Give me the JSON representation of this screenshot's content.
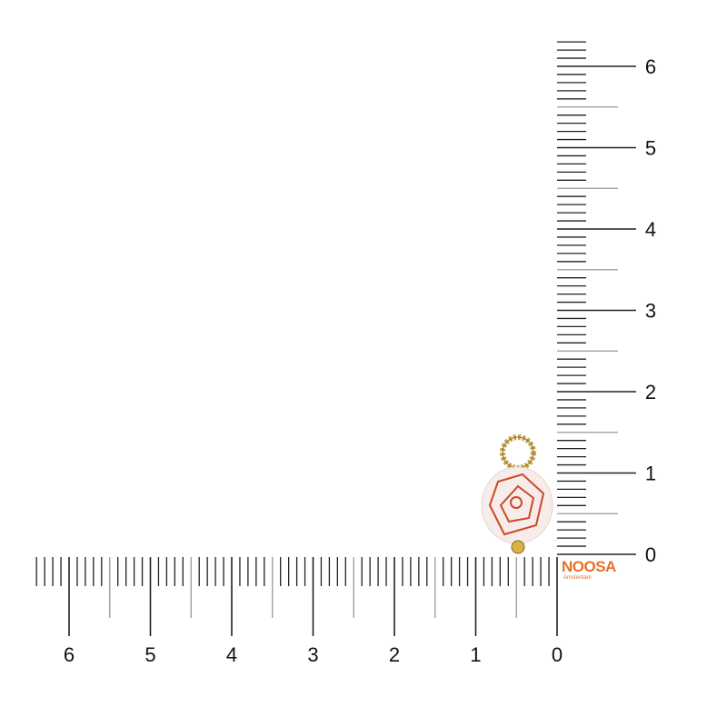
{
  "vertical_ruler": {
    "labels": [
      "0",
      "1",
      "2",
      "3",
      "4",
      "5",
      "6"
    ],
    "unit_ticks_per_label": 10
  },
  "horizontal_ruler": {
    "labels": [
      "0",
      "1",
      "2",
      "3",
      "4",
      "5",
      "6"
    ],
    "unit_ticks_per_label": 10
  },
  "product": {
    "description_icon": "bead-charm-icon",
    "bead_color": "#f7ece9",
    "pattern_color": "#c94a2a",
    "metal_color": "#c9a24a"
  },
  "logo": {
    "name": "NOOSA",
    "sub": "Amsterdam",
    "color": "#e8702a"
  }
}
